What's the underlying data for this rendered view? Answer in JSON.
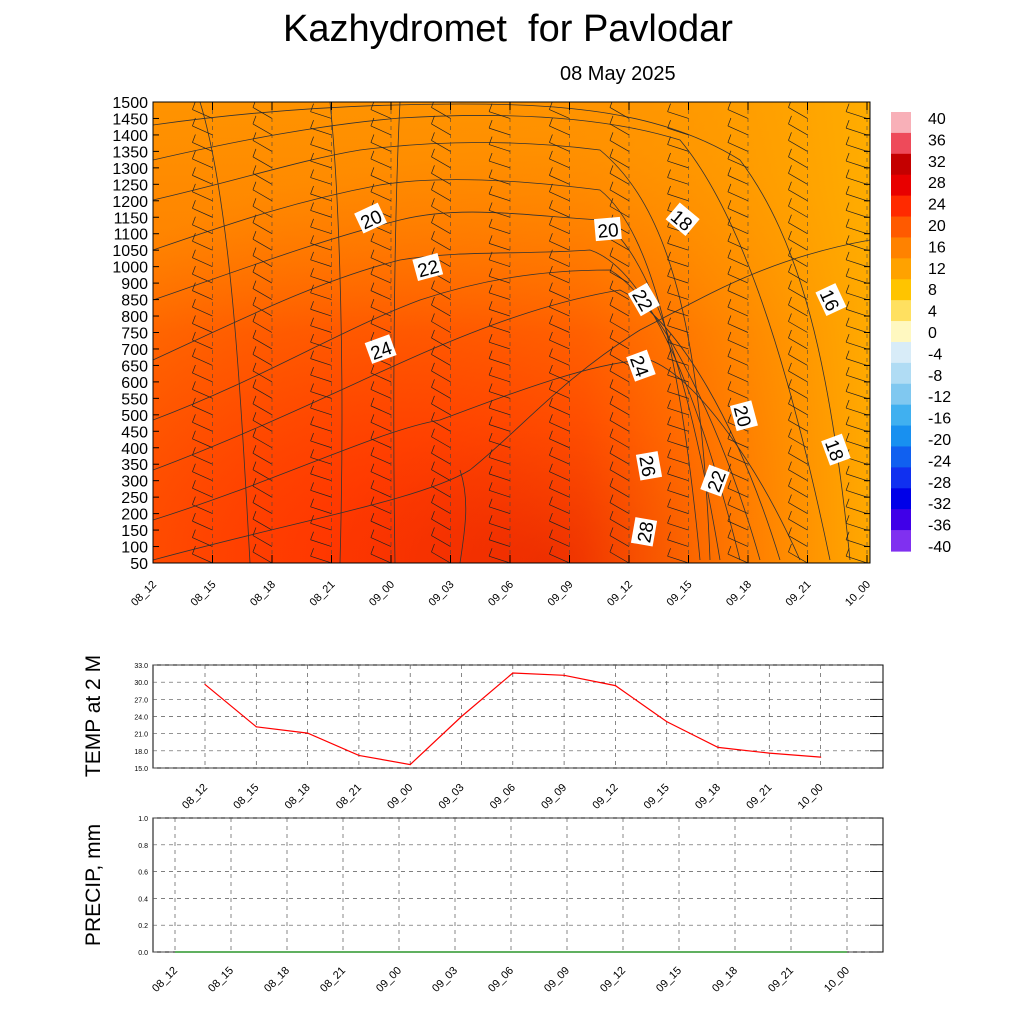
{
  "header": {
    "title": "Kazhydromet  for Pavlodar",
    "date": "08 May 2025"
  },
  "chart_data": [
    {
      "type": "heatmap",
      "description_kind": "time-height cross section",
      "y_ticks": [
        50,
        100,
        150,
        200,
        250,
        300,
        350,
        400,
        450,
        500,
        550,
        600,
        650,
        700,
        750,
        800,
        850,
        900,
        1000,
        1050,
        1100,
        1150,
        1200,
        1250,
        1300,
        1350,
        1400,
        1450,
        1500
      ],
      "x_ticks": [
        "08_12",
        "08_15",
        "08_18",
        "08_21",
        "09_00",
        "09_03",
        "09_06",
        "09_09",
        "09_12",
        "09_15",
        "09_18",
        "09_21",
        "10_00"
      ],
      "contour_labels": [
        "20",
        "22",
        "24",
        "20",
        "18",
        "22",
        "24",
        "16",
        "20",
        "26",
        "22",
        "18",
        "28"
      ],
      "colorbar": {
        "labels": [
          "40",
          "36",
          "32",
          "28",
          "24",
          "20",
          "16",
          "12",
          "8",
          "4",
          "0",
          "-4",
          "-8",
          "-12",
          "-16",
          "-20",
          "-24",
          "-28",
          "-32",
          "-36",
          "-40"
        ],
        "colors": [
          "#f8b0b8",
          "#ee4a5a",
          "#c40000",
          "#e80000",
          "#ff2a00",
          "#ff5a00",
          "#ff8200",
          "#ffa200",
          "#ffc400",
          "#ffe060",
          "#fff8c0",
          "#d8ecf8",
          "#b0dcf4",
          "#80c8f0",
          "#40b0f0",
          "#1890f0",
          "#1060f0",
          "#1030f0",
          "#0000e8",
          "#4000e8",
          "#8030f0"
        ]
      }
    },
    {
      "type": "line",
      "ylabel": "TEMP at 2 M",
      "y_ticks": [
        "33.0",
        "30.0",
        "27.0",
        "24.0",
        "21.0",
        "18.0",
        "15.0"
      ],
      "ylim": [
        15,
        33
      ],
      "categories": [
        "08_12",
        "08_15",
        "08_18",
        "08_21",
        "09_00",
        "09_03",
        "09_06",
        "09_09",
        "09_12",
        "09_15",
        "09_18",
        "09_21",
        "10_00"
      ],
      "values": [
        29.6,
        22.2,
        21.1,
        17.2,
        15.6,
        24.0,
        31.6,
        31.2,
        29.4,
        23.1,
        18.6,
        17.6,
        16.9
      ],
      "line_color": "#ff0000"
    },
    {
      "type": "line",
      "ylabel": "PRECIP, mm",
      "y_ticks": [
        "1.0",
        "0.8",
        "0.6",
        "0.4",
        "0.2",
        "0.0"
      ],
      "ylim": [
        0,
        1
      ],
      "categories": [
        "08_12",
        "08_15",
        "08_18",
        "08_21",
        "09_00",
        "09_03",
        "09_06",
        "09_09",
        "09_12",
        "09_15",
        "09_18",
        "09_21",
        "10_00"
      ],
      "values": [
        0,
        0,
        0,
        0,
        0,
        0,
        0,
        0,
        0,
        0,
        0,
        0,
        0
      ],
      "line_color": "#008000"
    }
  ]
}
